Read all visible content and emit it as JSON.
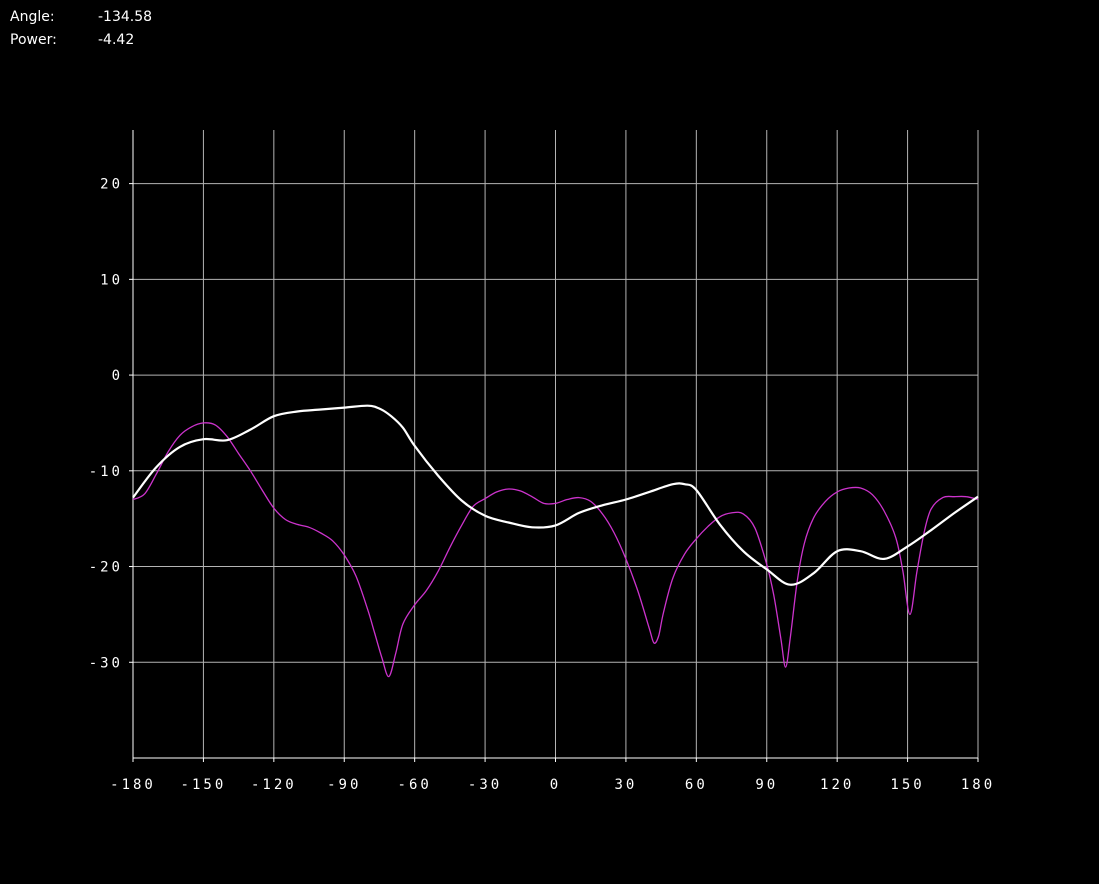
{
  "readout": {
    "angle_label": "Angle:",
    "angle_value": "-134.58",
    "power_label": "Power:",
    "power_value": "-4.42"
  },
  "colors": {
    "background": "#000000",
    "grid": "#b4b4b4",
    "axis": "#ffffff",
    "series_white": "#ffffff",
    "series_magenta": "#cc33cc"
  },
  "chart_data": {
    "type": "line",
    "title": "",
    "xlabel": "",
    "ylabel": "",
    "xlim": [
      -180,
      180
    ],
    "ylim": [
      -40,
      25
    ],
    "grid": true,
    "xticks": [
      -180,
      -150,
      -120,
      -90,
      -60,
      -30,
      0,
      30,
      60,
      90,
      120,
      150,
      180
    ],
    "xtick_labels": [
      "-180",
      "-150",
      "-120",
      "-90",
      "-60",
      "-30",
      "0",
      "30",
      "60",
      "90",
      "120",
      "150",
      "180"
    ],
    "yticks": [
      -30,
      -20,
      -10,
      0,
      10,
      20
    ],
    "ytick_labels": [
      "-30",
      "-20",
      "-10",
      "0",
      "10",
      "20"
    ],
    "series": [
      {
        "color": "#ffffff",
        "x": [
          -180,
          -170,
          -160,
          -150,
          -140,
          -130,
          -120,
          -110,
          -100,
          -90,
          -80,
          -75,
          -70,
          -65,
          -60,
          -50,
          -40,
          -30,
          -20,
          -10,
          0,
          10,
          20,
          30,
          40,
          50,
          55,
          60,
          70,
          80,
          90,
          100,
          110,
          120,
          130,
          140,
          150,
          160,
          170,
          180
        ],
        "y": [
          -12.8,
          -9.6,
          -7.5,
          -6.7,
          -6.8,
          -5.7,
          -4.3,
          -3.8,
          -3.6,
          -3.4,
          -3.2,
          -3.5,
          -4.3,
          -5.5,
          -7.4,
          -10.5,
          -13.1,
          -14.7,
          -15.4,
          -15.9,
          -15.7,
          -14.4,
          -13.6,
          -13.0,
          -12.2,
          -11.4,
          -11.4,
          -12.0,
          -15.6,
          -18.4,
          -20.3,
          -21.9,
          -20.7,
          -18.4,
          -18.4,
          -19.2,
          -17.9,
          -16.2,
          -14.4,
          -12.7
        ]
      },
      {
        "color": "#cc33cc",
        "x": [
          -180,
          -175,
          -170,
          -165,
          -160,
          -155,
          -150,
          -145,
          -140,
          -135,
          -130,
          -125,
          -120,
          -115,
          -110,
          -105,
          -100,
          -95,
          -90,
          -85,
          -80,
          -77,
          -74,
          -71,
          -68,
          -65,
          -60,
          -55,
          -50,
          -45,
          -40,
          -35,
          -30,
          -25,
          -20,
          -15,
          -10,
          -5,
          0,
          5,
          10,
          15,
          20,
          25,
          30,
          35,
          40,
          42,
          44,
          46,
          50,
          55,
          60,
          65,
          70,
          75,
          80,
          85,
          90,
          93,
          96,
          98,
          100,
          103,
          106,
          110,
          115,
          120,
          125,
          130,
          135,
          140,
          145,
          148,
          151,
          154,
          157,
          160,
          165,
          170,
          175,
          180
        ],
        "y": [
          -13.0,
          -12.4,
          -10.3,
          -8.0,
          -6.3,
          -5.4,
          -5.0,
          -5.2,
          -6.4,
          -8.2,
          -10.0,
          -12.0,
          -13.9,
          -15.1,
          -15.6,
          -15.9,
          -16.5,
          -17.3,
          -18.8,
          -21.0,
          -24.5,
          -27.0,
          -29.5,
          -31.5,
          -29.0,
          -26.0,
          -24.0,
          -22.5,
          -20.5,
          -18.0,
          -15.7,
          -13.7,
          -12.9,
          -12.2,
          -11.9,
          -12.1,
          -12.7,
          -13.4,
          -13.4,
          -13.0,
          -12.8,
          -13.2,
          -14.5,
          -16.5,
          -19.2,
          -22.5,
          -26.5,
          -28.0,
          -27.2,
          -24.8,
          -21.2,
          -18.7,
          -17.1,
          -15.8,
          -14.8,
          -14.4,
          -14.5,
          -16.0,
          -19.8,
          -23.0,
          -27.5,
          -30.5,
          -27.5,
          -21.5,
          -17.6,
          -14.9,
          -13.2,
          -12.2,
          -11.8,
          -11.8,
          -12.5,
          -14.2,
          -17.0,
          -20.5,
          -25.0,
          -20.5,
          -16.5,
          -14.0,
          -12.8,
          -12.7,
          -12.7,
          -13.0
        ]
      }
    ]
  }
}
